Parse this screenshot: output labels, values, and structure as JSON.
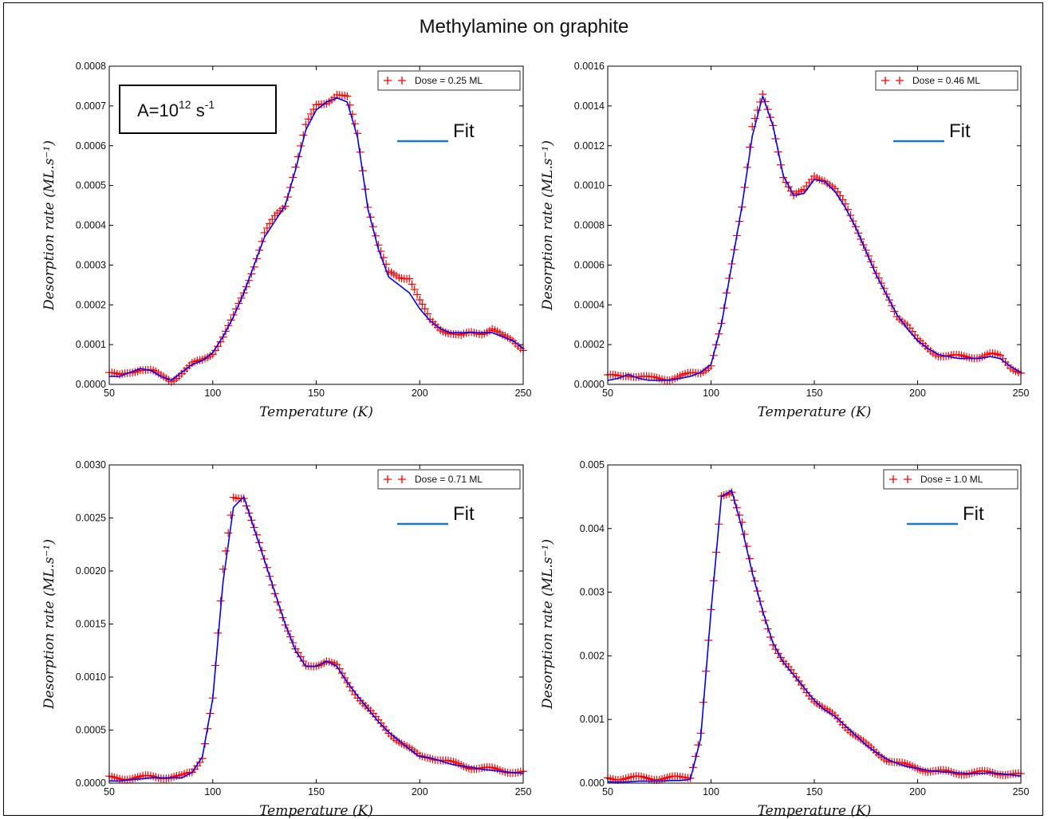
{
  "title": "Methylamine on graphite",
  "annotation": {
    "base": "A=10",
    "exp1": "12",
    "mid": " s",
    "exp2": "-1"
  },
  "fit_label": "Fit",
  "colors": {
    "data": "#ff0000",
    "fit": "#0000ff",
    "fit_legend": "#1f78c8"
  },
  "chart_data": [
    {
      "type": "scatter",
      "xlabel": "Temperature (K)",
      "ylabel": "Desorption rate (ML.s⁻¹)",
      "xlim": [
        50,
        250
      ],
      "ylim": [
        0,
        0.0008
      ],
      "x_ticks": [
        "50",
        "100",
        "150",
        "200",
        "250"
      ],
      "y_ticks": [
        "0.0000",
        "0.0001",
        "0.0002",
        "0.0003",
        "0.0004",
        "0.0005",
        "0.0006",
        "0.0007",
        "0.0008"
      ],
      "legend": {
        "placement": "top-right",
        "entries": [
          "Dose = 0.25 ML"
        ]
      },
      "series": [
        {
          "name": "Dose = 0.25 ML",
          "kind": "markers",
          "x": [
            50,
            55,
            60,
            65,
            70,
            75,
            80,
            85,
            90,
            95,
            100,
            105,
            110,
            115,
            120,
            125,
            130,
            135,
            140,
            145,
            150,
            155,
            160,
            165,
            170,
            175,
            180,
            185,
            190,
            195,
            200,
            205,
            210,
            215,
            220,
            225,
            230,
            235,
            240,
            245,
            250
          ],
          "y": [
            3e-05,
            2e-05,
            3e-05,
            4e-05,
            3.5e-05,
            2e-05,
            1e-05,
            3e-05,
            5e-05,
            6e-05,
            8e-05,
            0.00012,
            0.00017,
            0.00023,
            0.0003,
            0.00038,
            0.00042,
            0.00045,
            0.00055,
            0.00065,
            0.0007,
            0.00071,
            0.00073,
            0.00072,
            0.00063,
            0.00045,
            0.00035,
            0.00028,
            0.00027,
            0.00027,
            0.00021,
            0.00016,
            0.00014,
            0.00013,
            0.00012,
            0.00013,
            0.00013,
            0.00014,
            0.00012,
            0.00011,
            9e-05
          ]
        },
        {
          "name": "Fit",
          "kind": "line",
          "x": [
            50,
            55,
            60,
            65,
            70,
            75,
            80,
            85,
            90,
            95,
            100,
            105,
            110,
            115,
            120,
            125,
            130,
            135,
            140,
            145,
            150,
            155,
            160,
            165,
            170,
            175,
            180,
            185,
            190,
            195,
            200,
            205,
            210,
            215,
            220,
            225,
            230,
            235,
            240,
            245,
            250
          ],
          "y": [
            2e-05,
            2e-05,
            3e-05,
            4e-05,
            3.5e-05,
            2e-05,
            1e-05,
            3e-05,
            5e-05,
            6e-05,
            8e-05,
            0.00012,
            0.00017,
            0.00023,
            0.0003,
            0.00037,
            0.00041,
            0.00045,
            0.00054,
            0.00064,
            0.00069,
            0.00071,
            0.00072,
            0.00071,
            0.00062,
            0.00044,
            0.00034,
            0.00027,
            0.00025,
            0.00023,
            0.00019,
            0.00016,
            0.00014,
            0.00013,
            0.00013,
            0.00013,
            0.00013,
            0.00013,
            0.00012,
            0.00011,
            9e-05
          ]
        }
      ]
    },
    {
      "type": "scatter",
      "xlabel": "Temperature (K)",
      "ylabel": "Desorption rate (ML.s⁻¹)",
      "xlim": [
        50,
        250
      ],
      "ylim": [
        0,
        0.0016
      ],
      "x_ticks": [
        "50",
        "100",
        "150",
        "200",
        "250"
      ],
      "y_ticks": [
        "0.0000",
        "0.0002",
        "0.0004",
        "0.0006",
        "0.0008",
        "0.0010",
        "0.0012",
        "0.0014",
        "0.0016"
      ],
      "legend": {
        "placement": "top-right",
        "entries": [
          "Dose = 0.46 ML"
        ]
      },
      "series": [
        {
          "name": "Dose = 0.46 ML",
          "kind": "markers",
          "x": [
            50,
            55,
            60,
            65,
            70,
            75,
            80,
            85,
            90,
            95,
            100,
            105,
            110,
            115,
            120,
            125,
            130,
            135,
            140,
            145,
            150,
            155,
            160,
            165,
            170,
            175,
            180,
            185,
            190,
            195,
            200,
            205,
            210,
            215,
            220,
            225,
            230,
            235,
            240,
            245,
            250
          ],
          "y": [
            4e-05,
            4e-05,
            5e-05,
            4e-05,
            3e-05,
            3e-05,
            3e-05,
            4e-05,
            5e-05,
            6e-05,
            0.0001,
            0.0003,
            0.0006,
            0.0009,
            0.0013,
            0.00145,
            0.0013,
            0.00105,
            0.00095,
            0.00097,
            0.00105,
            0.00103,
            0.00098,
            0.0009,
            0.0008,
            0.00068,
            0.00055,
            0.00045,
            0.00035,
            0.0003,
            0.00022,
            0.00018,
            0.00015,
            0.00014,
            0.00014,
            0.00014,
            0.00014,
            0.00015,
            0.00014,
            9e-05,
            6e-05
          ]
        },
        {
          "name": "Fit",
          "kind": "line",
          "x": [
            50,
            55,
            60,
            65,
            70,
            75,
            80,
            85,
            90,
            95,
            100,
            105,
            110,
            115,
            120,
            125,
            130,
            135,
            140,
            145,
            150,
            155,
            160,
            165,
            170,
            175,
            180,
            185,
            190,
            195,
            200,
            205,
            210,
            215,
            220,
            225,
            230,
            235,
            240,
            245,
            250
          ],
          "y": [
            2e-05,
            3e-05,
            5e-05,
            3e-05,
            2e-05,
            2e-05,
            2e-05,
            3e-05,
            4e-05,
            6e-05,
            0.0001,
            0.0003,
            0.0006,
            0.0009,
            0.00125,
            0.00145,
            0.0013,
            0.00105,
            0.00095,
            0.00096,
            0.00103,
            0.00102,
            0.00097,
            0.00089,
            0.00079,
            0.00067,
            0.00055,
            0.00045,
            0.00035,
            0.00028,
            0.00022,
            0.00018,
            0.00015,
            0.00014,
            0.00013,
            0.00013,
            0.00013,
            0.00014,
            0.00013,
            9e-05,
            6e-05
          ]
        }
      ]
    },
    {
      "type": "scatter",
      "xlabel": "Temperature (K)",
      "ylabel": "Desorption rate (ML.s⁻¹)",
      "xlim": [
        50,
        250
      ],
      "ylim": [
        0,
        0.003
      ],
      "x_ticks": [
        "50",
        "100",
        "150",
        "200",
        "250"
      ],
      "y_ticks": [
        "0.0000",
        "0.0005",
        "0.0010",
        "0.0015",
        "0.0020",
        "0.0025",
        "0.0030"
      ],
      "legend": {
        "placement": "top-right",
        "entries": [
          "Dose = 0.71 ML"
        ]
      },
      "series": [
        {
          "name": "Dose = 0.71 ML",
          "kind": "markers",
          "x": [
            50,
            55,
            60,
            65,
            70,
            75,
            80,
            85,
            90,
            95,
            100,
            105,
            110,
            115,
            120,
            125,
            130,
            135,
            140,
            145,
            150,
            155,
            160,
            165,
            170,
            175,
            180,
            185,
            190,
            195,
            200,
            205,
            210,
            215,
            220,
            225,
            230,
            235,
            240,
            245,
            250
          ],
          "y": [
            5e-05,
            5e-05,
            5e-05,
            5e-05,
            6e-05,
            6e-05,
            6e-05,
            6e-05,
            0.0001,
            0.00025,
            0.0008,
            0.002,
            0.0027,
            0.0027,
            0.0024,
            0.0021,
            0.0018,
            0.0015,
            0.00125,
            0.0011,
            0.00112,
            0.00115,
            0.0011,
            0.00095,
            0.00082,
            0.0007,
            0.00058,
            0.00048,
            0.0004,
            0.00032,
            0.00025,
            0.00025,
            0.00022,
            0.00019,
            0.00017,
            0.00015,
            0.00014,
            0.00013,
            0.00012,
            0.00011,
            0.0001
          ]
        },
        {
          "name": "Fit",
          "kind": "line",
          "x": [
            50,
            55,
            60,
            65,
            70,
            75,
            80,
            85,
            90,
            95,
            100,
            105,
            110,
            115,
            120,
            125,
            130,
            135,
            140,
            145,
            150,
            155,
            160,
            165,
            170,
            175,
            180,
            185,
            190,
            195,
            200,
            205,
            210,
            215,
            220,
            225,
            230,
            235,
            240,
            245,
            250
          ],
          "y": [
            2e-05,
            2e-05,
            3e-05,
            4e-05,
            5e-05,
            5e-05,
            5e-05,
            5e-05,
            0.0001,
            0.00025,
            0.0008,
            0.0019,
            0.0026,
            0.0027,
            0.0024,
            0.0021,
            0.0018,
            0.0015,
            0.00125,
            0.0011,
            0.0011,
            0.00115,
            0.0011,
            0.00095,
            0.00082,
            0.0007,
            0.00058,
            0.00048,
            0.0004,
            0.00032,
            0.00025,
            0.00024,
            0.00021,
            0.00018,
            0.00016,
            0.00015,
            0.00013,
            0.00012,
            0.00011,
            0.0001,
            9e-05
          ]
        }
      ]
    },
    {
      "type": "scatter",
      "xlabel": "Temperature (K)",
      "ylabel": "Desorption rate (ML.s⁻¹)",
      "xlim": [
        50,
        250
      ],
      "ylim": [
        0,
        0.005
      ],
      "x_ticks": [
        "50",
        "100",
        "150",
        "200",
        "250"
      ],
      "y_ticks": [
        "0.000",
        "0.001",
        "0.002",
        "0.003",
        "0.004",
        "0.005"
      ],
      "legend": {
        "placement": "top-right",
        "entries": [
          "Dose = 1.0 ML"
        ]
      },
      "series": [
        {
          "name": "Dose = 1.0 ML",
          "kind": "markers",
          "x": [
            50,
            55,
            60,
            65,
            70,
            75,
            80,
            85,
            90,
            95,
            100,
            105,
            110,
            115,
            120,
            125,
            130,
            135,
            140,
            145,
            150,
            155,
            160,
            165,
            170,
            175,
            180,
            185,
            190,
            195,
            200,
            205,
            210,
            215,
            220,
            225,
            230,
            235,
            240,
            245,
            250
          ],
          "y": [
            8e-05,
            8e-05,
            8e-05,
            8e-05,
            8e-05,
            8e-05,
            8e-05,
            8e-05,
            0.0001,
            0.0008,
            0.0027,
            0.0045,
            0.0046,
            0.0041,
            0.0033,
            0.0027,
            0.0022,
            0.0019,
            0.0017,
            0.0015,
            0.0013,
            0.00115,
            0.00105,
            0.0009,
            0.00075,
            0.0006,
            0.00048,
            0.00038,
            0.00032,
            0.00027,
            0.00024,
            0.0002,
            0.00018,
            0.00017,
            0.00016,
            0.00016,
            0.00016,
            0.00017,
            0.00016,
            0.00014,
            0.00012
          ]
        },
        {
          "name": "Fit",
          "kind": "line",
          "x": [
            50,
            55,
            60,
            65,
            70,
            75,
            80,
            85,
            90,
            95,
            100,
            105,
            110,
            115,
            120,
            125,
            130,
            135,
            140,
            145,
            150,
            155,
            160,
            165,
            170,
            175,
            180,
            185,
            190,
            195,
            200,
            205,
            210,
            215,
            220,
            225,
            230,
            235,
            240,
            245,
            250
          ],
          "y": [
            2e-05,
            2e-05,
            2e-05,
            3e-05,
            3e-05,
            3e-05,
            4e-05,
            4e-05,
            6e-05,
            0.0007,
            0.0027,
            0.0045,
            0.0046,
            0.004,
            0.0033,
            0.0027,
            0.0022,
            0.0019,
            0.0017,
            0.0015,
            0.0013,
            0.00115,
            0.00105,
            0.0009,
            0.00075,
            0.0006,
            0.00048,
            0.00038,
            0.00031,
            0.00026,
            0.00023,
            0.0002,
            0.00018,
            0.00017,
            0.00016,
            0.00015,
            0.00015,
            0.00016,
            0.00015,
            0.00013,
            0.00011
          ]
        }
      ]
    }
  ]
}
